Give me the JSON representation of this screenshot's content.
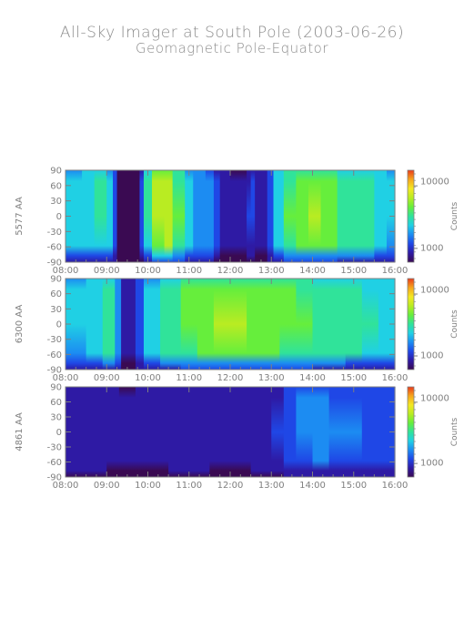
{
  "title": "All-Sky Imager at South Pole (2003-06-26)",
  "subtitle": "Geomagnetic Pole-Equator",
  "chart_data": [
    {
      "type": "heatmap",
      "ylabel": "5577 AA",
      "x_ticks": [
        "08:00",
        "09:00",
        "10:00",
        "11:00",
        "12:00",
        "13:00",
        "14:00",
        "15:00",
        "16:00"
      ],
      "y_ticks": [
        90,
        60,
        30,
        0,
        -30,
        -60,
        -90
      ],
      "xlim": [
        "08:00",
        "16:00"
      ],
      "ylim": [
        -90,
        90
      ],
      "colorbar": {
        "label": "Counts",
        "ticks": [
          "10000",
          "1000"
        ],
        "scale": "log"
      },
      "palette": [
        "#3a0a52",
        "#2e1aa4",
        "#1f47e6",
        "#1c8cf2",
        "#20d0e4",
        "#30e39a",
        "#66ee3c",
        "#b9ec22",
        "#f4e823",
        "#f6a61c",
        "#ea3a19"
      ],
      "intensity_profile": [
        [
          8.0,
          0.36
        ],
        [
          8.4,
          0.38
        ],
        [
          8.7,
          0.42
        ],
        [
          9.0,
          0.46
        ],
        [
          9.15,
          0.3
        ],
        [
          9.25,
          0.04
        ],
        [
          9.5,
          0.02
        ],
        [
          9.8,
          0.03
        ],
        [
          9.9,
          0.28
        ],
        [
          10.1,
          0.6
        ],
        [
          10.4,
          0.68
        ],
        [
          10.6,
          0.62
        ],
        [
          10.9,
          0.4
        ],
        [
          11.1,
          0.33
        ],
        [
          11.4,
          0.3
        ],
        [
          11.6,
          0.25
        ],
        [
          11.75,
          0.07
        ],
        [
          12.0,
          0.05
        ],
        [
          12.4,
          0.06
        ],
        [
          12.5,
          0.22
        ],
        [
          12.6,
          0.07
        ],
        [
          12.9,
          0.05
        ],
        [
          13.05,
          0.35
        ],
        [
          13.3,
          0.45
        ],
        [
          13.6,
          0.58
        ],
        [
          13.9,
          0.54
        ],
        [
          14.2,
          0.66
        ],
        [
          14.6,
          0.5
        ],
        [
          14.9,
          0.42
        ],
        [
          15.2,
          0.55
        ],
        [
          15.5,
          0.44
        ],
        [
          15.8,
          0.35
        ],
        [
          16.0,
          0.34
        ]
      ]
    },
    {
      "type": "heatmap",
      "ylabel": "6300 AA",
      "x_ticks": [
        "08:00",
        "09:00",
        "10:00",
        "11:00",
        "12:00",
        "13:00",
        "14:00",
        "15:00",
        "16:00"
      ],
      "y_ticks": [
        90,
        60,
        30,
        0,
        -30,
        -60,
        -90
      ],
      "xlim": [
        "08:00",
        "16:00"
      ],
      "ylim": [
        -90,
        90
      ],
      "colorbar": {
        "label": "Counts",
        "ticks": [
          "10000",
          "1000"
        ],
        "scale": "log"
      },
      "palette": [
        "#3a0a52",
        "#2e1aa4",
        "#1f47e6",
        "#1c8cf2",
        "#20d0e4",
        "#30e39a",
        "#66ee3c",
        "#b9ec22",
        "#f4e823",
        "#f6a61c",
        "#ea3a19"
      ],
      "intensity_profile": [
        [
          8.0,
          0.32
        ],
        [
          8.5,
          0.36
        ],
        [
          8.9,
          0.42
        ],
        [
          9.2,
          0.5
        ],
        [
          9.35,
          0.08
        ],
        [
          9.7,
          0.06
        ],
        [
          9.9,
          0.3
        ],
        [
          10.3,
          0.44
        ],
        [
          10.8,
          0.5
        ],
        [
          11.2,
          0.56
        ],
        [
          11.6,
          0.6
        ],
        [
          12.0,
          0.62
        ],
        [
          12.4,
          0.6
        ],
        [
          12.8,
          0.58
        ],
        [
          13.2,
          0.55
        ],
        [
          13.6,
          0.52
        ],
        [
          14.0,
          0.5
        ],
        [
          14.4,
          0.48
        ],
        [
          14.8,
          0.46
        ],
        [
          15.2,
          0.44
        ],
        [
          15.6,
          0.4
        ],
        [
          16.0,
          0.38
        ]
      ]
    },
    {
      "type": "heatmap",
      "ylabel": "4861 AA",
      "x_ticks": [
        "08:00",
        "09:00",
        "10:00",
        "11:00",
        "12:00",
        "13:00",
        "14:00",
        "15:00",
        "16:00"
      ],
      "y_ticks": [
        90,
        60,
        30,
        0,
        -30,
        -60,
        -90
      ],
      "xlim": [
        "08:00",
        "16:00"
      ],
      "ylim": [
        -90,
        90
      ],
      "colorbar": {
        "label": "Counts",
        "ticks": [
          "10000",
          "1000"
        ],
        "scale": "log"
      },
      "palette": [
        "#3a0a52",
        "#2e1aa4",
        "#1f47e6",
        "#1c8cf2",
        "#20d0e4",
        "#30e39a",
        "#66ee3c",
        "#b9ec22",
        "#f4e823",
        "#f6a61c",
        "#ea3a19"
      ],
      "intensity_profile": [
        [
          8.0,
          0.1
        ],
        [
          9.0,
          0.1
        ],
        [
          9.3,
          0.04
        ],
        [
          9.7,
          0.06
        ],
        [
          10.5,
          0.11
        ],
        [
          11.5,
          0.1
        ],
        [
          12.0,
          0.06
        ],
        [
          12.5,
          0.09
        ],
        [
          13.0,
          0.12
        ],
        [
          13.3,
          0.16
        ],
        [
          13.6,
          0.22
        ],
        [
          14.0,
          0.26
        ],
        [
          14.4,
          0.24
        ],
        [
          14.8,
          0.22
        ],
        [
          15.2,
          0.24
        ],
        [
          16.0,
          0.2
        ]
      ]
    }
  ]
}
